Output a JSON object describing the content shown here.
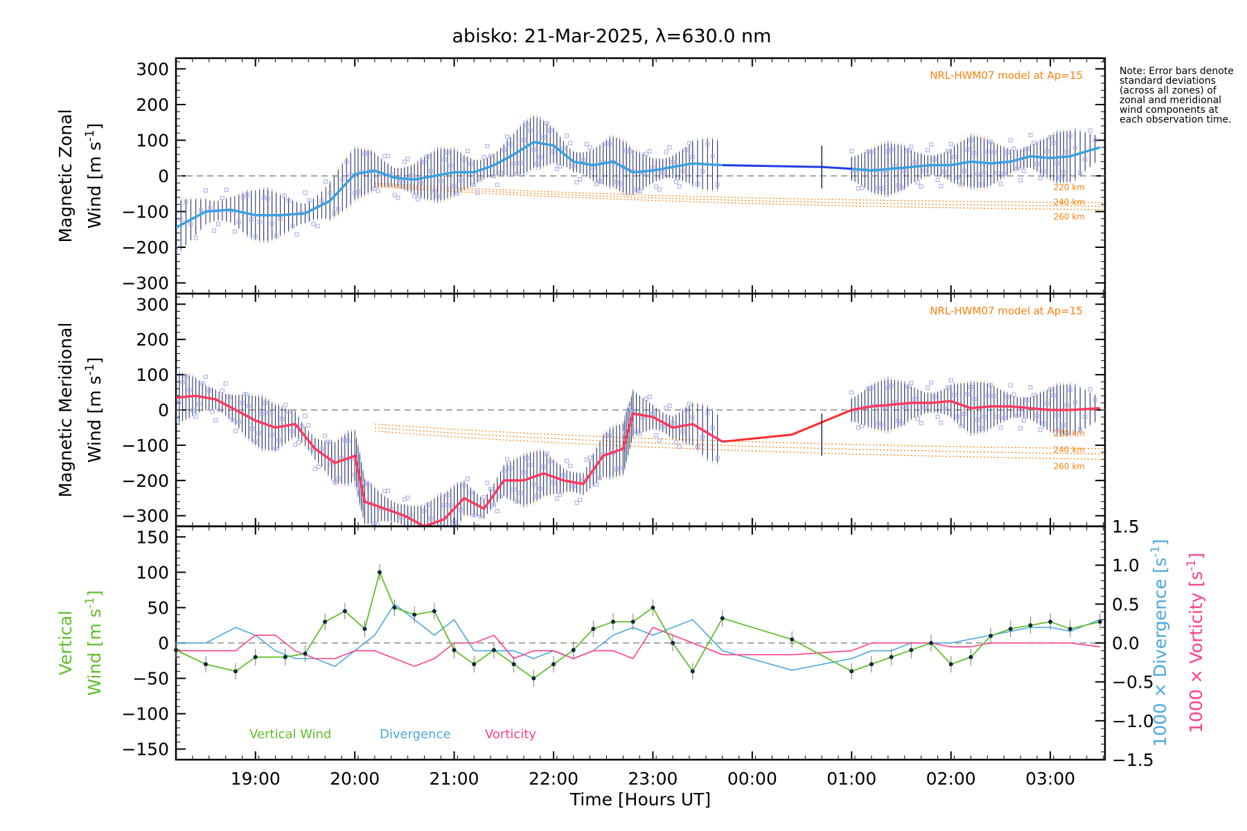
{
  "title": "abisko: 21-Mar-2025, λ=630.0 nm",
  "note": "Note: Error bars denote standard deviations (across all zones) of zonal and meridional wind components at each observation time.",
  "xlabel": "Time [Hours UT]",
  "xticks": [
    "19:00",
    "20:00",
    "21:00",
    "22:00",
    "23:00",
    "00:00",
    "01:00",
    "02:00",
    "03:00"
  ],
  "colors": {
    "zonal": "#3aa0e0",
    "zonal_interp": "#1f3de8",
    "meridional": "#ff3a5e",
    "meridional_interp": "#ff2a2a",
    "model": "#ff7f0e",
    "vertical": "#5fbf2a",
    "divergence": "#4aa8dc",
    "vorticity": "#ff3d86",
    "scatter": "#a7a4e6",
    "zero": "#888888"
  },
  "chart_data": [
    {
      "type": "line",
      "panel": "zonal",
      "ylabel_line1": "Magnetic Zonal",
      "ylabel_line2": "Wind [m s",
      "ylabel_sup": "-1",
      "ylabel_close": "]",
      "ylim": [
        -330,
        330
      ],
      "yticks": [
        "300",
        "200",
        "100",
        "0",
        "−100",
        "−200",
        "−300"
      ],
      "ytick_values": [
        300,
        200,
        100,
        0,
        -100,
        -200,
        -300
      ],
      "model_label": "NRL-HWM07 model at Ap=15",
      "model_altitudes": [
        "220 km",
        "240 km",
        "260 km"
      ],
      "x": [
        18.2,
        18.5,
        18.75,
        19.0,
        19.25,
        19.5,
        19.75,
        20.0,
        20.2,
        20.4,
        20.6,
        20.8,
        21.0,
        21.2,
        21.4,
        21.6,
        21.8,
        22.0,
        22.2,
        22.4,
        22.6,
        22.8,
        23.0,
        23.2,
        23.4,
        23.7
      ],
      "values": [
        -145,
        -100,
        -95,
        -110,
        -110,
        -105,
        -70,
        5,
        15,
        -5,
        -10,
        0,
        10,
        10,
        30,
        60,
        95,
        85,
        40,
        30,
        40,
        10,
        15,
        25,
        35,
        30
      ],
      "x_after": [
        25.0,
        25.2,
        25.4,
        25.6,
        25.8,
        26.0,
        26.2,
        26.4,
        26.6,
        26.8,
        27.0,
        27.2,
        27.5
      ],
      "values_after": [
        20,
        15,
        20,
        25,
        30,
        30,
        40,
        35,
        40,
        55,
        50,
        55,
        80
      ],
      "interp_x": [
        23.7,
        24.7,
        25.0
      ],
      "interp_values": [
        30,
        25,
        20
      ],
      "models": [
        [
          -20,
          -75
        ],
        [
          -25,
          -85
        ],
        [
          -30,
          -95
        ]
      ]
    },
    {
      "type": "line",
      "panel": "meridional",
      "ylabel_line1": "Magnetic Meridional",
      "ylabel_line2": "Wind [m s",
      "ylabel_sup": "-1",
      "ylabel_close": "]",
      "ylim": [
        -330,
        330
      ],
      "yticks": [
        "300",
        "200",
        "100",
        "0",
        "−100",
        "−200",
        "−300"
      ],
      "ytick_values": [
        300,
        200,
        100,
        0,
        -100,
        -200,
        -300
      ],
      "model_label": "NRL-HWM07 model at Ap=15",
      "model_altitudes": [
        "220 km",
        "240 km",
        "260 km"
      ],
      "x": [
        18.2,
        18.4,
        18.6,
        18.8,
        19.0,
        19.2,
        19.4,
        19.6,
        19.8,
        20.0,
        20.1,
        20.3,
        20.5,
        20.7,
        20.9,
        21.1,
        21.3,
        21.5,
        21.7,
        21.9,
        22.1,
        22.3,
        22.5,
        22.7,
        22.8,
        23.0,
        23.2,
        23.4,
        23.7
      ],
      "values": [
        35,
        40,
        30,
        0,
        -30,
        -50,
        -40,
        -110,
        -150,
        -130,
        -260,
        -280,
        -300,
        -330,
        -310,
        -250,
        -280,
        -200,
        -200,
        -180,
        -200,
        -210,
        -130,
        -110,
        -10,
        -20,
        -50,
        -40,
        -90
      ],
      "x_after": [
        25.0,
        25.2,
        25.4,
        25.6,
        25.8,
        26.0,
        26.2,
        26.4,
        26.6,
        26.8,
        27.0,
        27.2,
        27.5
      ],
      "values_after": [
        0,
        10,
        15,
        20,
        20,
        25,
        5,
        10,
        10,
        5,
        0,
        0,
        5
      ],
      "interp_x": [
        23.7,
        24.4,
        25.0
      ],
      "interp_values": [
        -90,
        -70,
        0
      ],
      "models": [
        [
          -40,
          -110
        ],
        [
          -50,
          -125
        ],
        [
          -60,
          -140
        ]
      ]
    },
    {
      "type": "line",
      "panel": "vertical",
      "ylabel_line1": "Vertical",
      "ylabel_line2": "Wind [m s",
      "ylabel_sup": "-1",
      "ylabel_close": "]",
      "ylim": [
        -165,
        165
      ],
      "yticks": [
        "150",
        "100",
        "50",
        "0",
        "−50",
        "−100",
        "−150"
      ],
      "ytick_values": [
        150,
        100,
        50,
        0,
        -50,
        -100,
        -150
      ],
      "right_ylim": [
        -1.5,
        1.5
      ],
      "right_yticks": [
        "1.5",
        "1.0",
        "0.5",
        "0.0",
        "−0.5",
        "−1.0",
        "−1.5"
      ],
      "right_ytick_values": [
        1.5,
        1.0,
        0.5,
        0.0,
        -0.5,
        -1.0,
        -1.5
      ],
      "right_ylabel_div": "1000 × Divergence [s",
      "right_ylabel_vort": "1000 × Vorticity [s",
      "right_ylabel_sup": "-1",
      "right_ylabel_close": "]",
      "legend": [
        "Vertical Wind",
        "Divergence",
        "Vorticity"
      ],
      "series": [
        {
          "name": "Vertical Wind",
          "x": [
            18.2,
            18.5,
            18.8,
            19.0,
            19.3,
            19.5,
            19.7,
            19.9,
            20.1,
            20.25,
            20.4,
            20.6,
            20.8,
            21.0,
            21.2,
            21.4,
            21.6,
            21.8,
            22.0,
            22.2,
            22.4,
            22.6,
            22.8,
            23.0,
            23.2,
            23.4,
            23.7,
            24.4,
            25.0,
            25.2,
            25.4,
            25.6,
            25.8,
            26.0,
            26.2,
            26.4,
            26.6,
            26.8,
            27.0,
            27.2,
            27.5
          ],
          "values": [
            -10,
            -30,
            -40,
            -20,
            -20,
            -15,
            30,
            45,
            20,
            100,
            50,
            40,
            45,
            -10,
            -30,
            -10,
            -30,
            -50,
            -30,
            -10,
            20,
            30,
            30,
            50,
            0,
            -40,
            35,
            5,
            -40,
            -30,
            -20,
            -10,
            0,
            -30,
            -20,
            10,
            20,
            25,
            30,
            20,
            30
          ]
        },
        {
          "name": "Divergence",
          "x": [
            18.2,
            18.5,
            18.8,
            19.0,
            19.2,
            19.4,
            19.6,
            19.8,
            20.0,
            20.2,
            20.4,
            20.6,
            20.8,
            21.0,
            21.2,
            21.4,
            21.6,
            21.8,
            22.0,
            22.2,
            22.4,
            22.6,
            22.8,
            23.0,
            23.2,
            23.4,
            23.7,
            24.4,
            25.0,
            25.2,
            25.4,
            25.6,
            25.8,
            26.0,
            26.2,
            26.4,
            26.6,
            26.8,
            27.0,
            27.2,
            27.5
          ],
          "values": [
            0.0,
            0.0,
            0.2,
            0.1,
            -0.1,
            -0.2,
            -0.2,
            -0.3,
            -0.1,
            0.1,
            0.5,
            0.3,
            0.1,
            0.3,
            -0.1,
            -0.1,
            -0.1,
            -0.2,
            -0.1,
            -0.2,
            -0.1,
            0.1,
            0.2,
            0.1,
            0.2,
            0.3,
            -0.1,
            -0.35,
            -0.2,
            -0.1,
            -0.1,
            0.0,
            0.0,
            0.0,
            0.05,
            0.1,
            0.15,
            0.2,
            0.2,
            0.15,
            0.3
          ]
        },
        {
          "name": "Vorticity",
          "x": [
            18.2,
            18.5,
            18.8,
            19.0,
            19.2,
            19.4,
            19.6,
            19.8,
            20.0,
            20.2,
            20.4,
            20.6,
            20.8,
            21.0,
            21.2,
            21.4,
            21.6,
            21.8,
            22.0,
            22.2,
            22.4,
            22.6,
            22.8,
            23.0,
            23.2,
            23.4,
            23.7,
            24.4,
            25.0,
            25.2,
            25.4,
            25.6,
            25.8,
            26.0,
            26.2,
            26.4,
            26.6,
            26.8,
            27.0,
            27.2,
            27.5
          ],
          "values": [
            -0.1,
            -0.1,
            -0.1,
            0.1,
            0.1,
            -0.1,
            -0.2,
            -0.2,
            -0.1,
            -0.1,
            -0.2,
            -0.3,
            -0.2,
            0.0,
            0.0,
            0.1,
            -0.2,
            -0.1,
            -0.1,
            -0.2,
            -0.1,
            -0.1,
            -0.2,
            0.2,
            0.1,
            0.0,
            -0.15,
            -0.15,
            -0.1,
            0.0,
            0.0,
            0.0,
            0.0,
            -0.05,
            -0.05,
            0.0,
            0.0,
            0.0,
            0.0,
            0.0,
            -0.05
          ]
        }
      ]
    }
  ]
}
